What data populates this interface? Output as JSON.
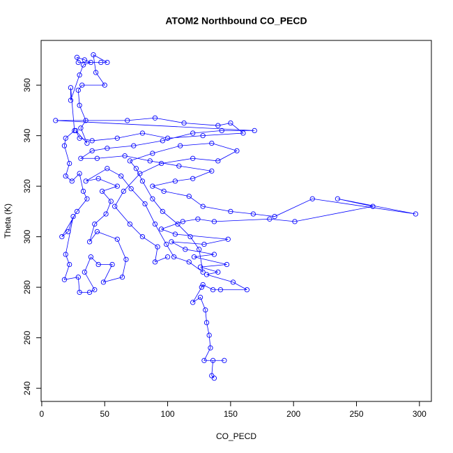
{
  "chart_data": {
    "type": "scatter",
    "connect": true,
    "title": "ATOM2 Northbound CO_PECD",
    "x_label": "CO_PECD",
    "y_label": "Theta (K)",
    "color": "#0000ff",
    "xlim": [
      -0.5,
      309.5
    ],
    "ylim": [
      234.8,
      377.7
    ],
    "xticks": [
      0,
      50,
      100,
      150,
      200,
      250,
      300
    ],
    "yticks": [
      240,
      260,
      280,
      300,
      320,
      340,
      360
    ],
    "x": [
      137,
      135,
      136,
      145,
      129,
      134,
      133,
      131,
      130,
      126,
      120,
      127,
      128,
      136,
      142,
      163,
      152,
      131,
      140,
      126,
      147,
      121,
      137,
      114,
      103,
      129,
      148,
      106,
      95,
      112,
      124,
      137,
      181,
      201,
      263,
      235,
      297,
      215,
      185,
      168,
      150,
      128,
      117,
      97,
      88,
      106,
      120,
      135,
      109,
      86,
      66,
      44,
      31,
      40,
      52,
      73,
      96,
      120,
      143,
      169,
      11,
      68,
      90,
      113,
      140,
      150,
      160,
      128,
      100,
      80,
      60,
      40,
      30,
      27,
      36,
      31,
      35,
      30,
      29,
      32,
      50,
      43,
      41,
      52,
      47,
      29,
      28,
      34,
      39,
      33,
      30,
      23,
      23,
      26,
      19,
      18,
      22,
      19,
      24,
      30,
      33,
      36,
      28,
      16,
      21,
      25,
      19,
      22,
      18,
      29,
      30,
      38,
      42,
      34,
      39,
      45,
      56,
      49,
      64,
      67,
      60,
      44,
      38,
      42,
      51,
      55,
      48,
      60,
      45,
      35,
      52,
      63,
      71,
      82,
      90,
      99,
      105,
      117,
      128,
      125,
      118,
      108,
      96,
      88,
      80,
      75,
      70,
      88,
      110,
      135,
      155,
      140,
      120,
      95,
      78,
      65,
      58,
      70,
      80,
      92,
      90,
      100
    ],
    "values": [
      244,
      245,
      251,
      251,
      251,
      256,
      261,
      266,
      271,
      276,
      274,
      280,
      281,
      279,
      279,
      279,
      282,
      285,
      286,
      288,
      289,
      292,
      293,
      295,
      298,
      297,
      299,
      301,
      303,
      306,
      307,
      306,
      307,
      306,
      312,
      315,
      309,
      315,
      308,
      309,
      310,
      312,
      316,
      318,
      320,
      322,
      323,
      326,
      328,
      330,
      332,
      331,
      331,
      334,
      335,
      336,
      338,
      341,
      342,
      342,
      346,
      346,
      347,
      345,
      344,
      345,
      341,
      340,
      339,
      341,
      339,
      338,
      339,
      342,
      337,
      343,
      346,
      352,
      358,
      360,
      360,
      365,
      372,
      369,
      369,
      369,
      371,
      370,
      369,
      368,
      364,
      354,
      359,
      342,
      339,
      336,
      329,
      324,
      322,
      325,
      318,
      315,
      310,
      300,
      302,
      308,
      293,
      289,
      283,
      284,
      278,
      278,
      279,
      286,
      292,
      289,
      289,
      282,
      284,
      291,
      299,
      302,
      298,
      305,
      309,
      314,
      318,
      320,
      323,
      322,
      327,
      324,
      319,
      313,
      305,
      297,
      292,
      290,
      286,
      295,
      300,
      305,
      310,
      315,
      322,
      327,
      330,
      333,
      336,
      337,
      334,
      330,
      331,
      329,
      325,
      318,
      312,
      305,
      300,
      296,
      290,
      292
    ]
  }
}
